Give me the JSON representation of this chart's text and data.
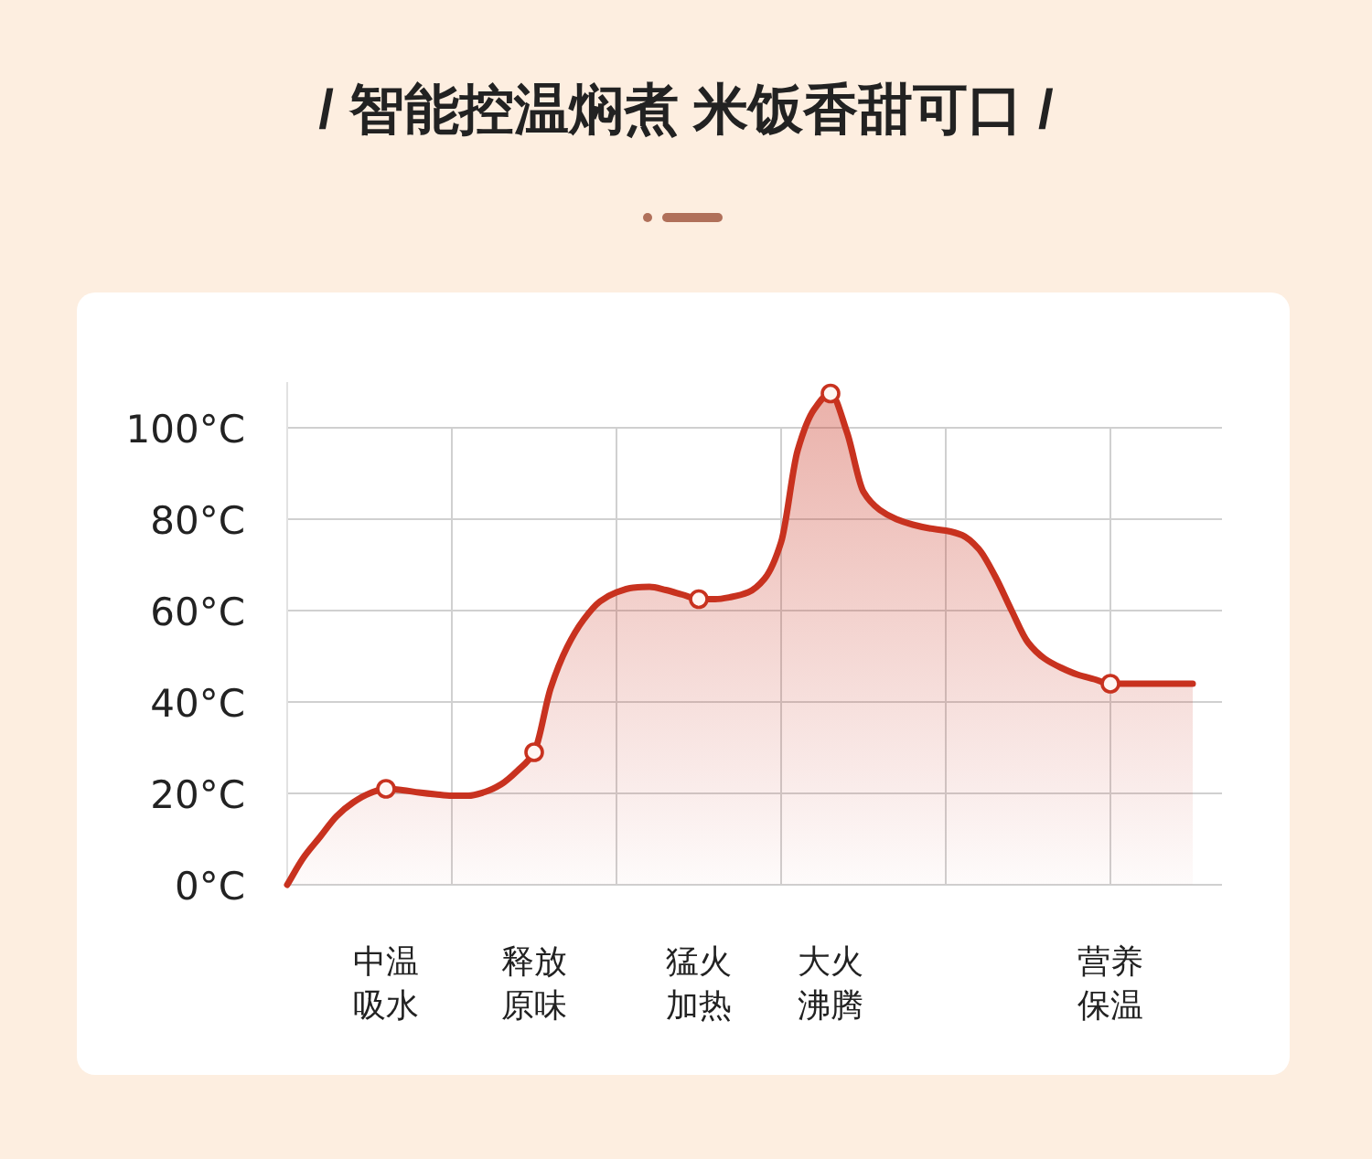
{
  "chart_data": {
    "type": "area",
    "title": "/ 智能控温焖煮 米饭香甜可口 /",
    "categories": [
      null,
      null,
      null,
      null,
      null,
      null,
      "中温吸水",
      null,
      null,
      null,
      null,
      null,
      null,
      null,
      null,
      "释放原味",
      null,
      null,
      null,
      null,
      null,
      null,
      null,
      null,
      null,
      "猛火加热",
      null,
      null,
      null,
      null,
      null,
      null,
      null,
      "大火沸腾",
      null,
      null,
      null,
      null,
      null,
      null,
      null,
      null,
      null,
      null,
      null,
      null,
      null,
      null,
      null,
      null,
      "营养保温",
      null,
      null,
      null,
      null,
      null
    ],
    "ylim": [
      0,
      110
    ],
    "yticks": [
      {
        "value": 0,
        "label": "0°C"
      },
      {
        "value": 20,
        "label": "20°C"
      },
      {
        "value": 40,
        "label": "40°C"
      },
      {
        "value": 60,
        "label": "60°C"
      },
      {
        "value": 80,
        "label": "80°C"
      },
      {
        "value": 100,
        "label": "100°C"
      }
    ],
    "grid": true,
    "series": [
      {
        "type": "area",
        "color": "#c8321f",
        "marker": "none",
        "values": [
          0,
          6,
          10.5,
          15,
          18,
          20,
          21,
          20.7,
          20.2,
          19.8,
          19.5,
          19.5,
          20.3,
          22,
          25,
          29,
          43,
          52,
          58,
          62,
          64,
          65,
          65.2,
          64.5,
          63.5,
          62.5,
          62.5,
          63,
          64,
          67,
          75,
          95,
          104,
          107.5,
          99,
          86,
          82,
          80,
          78.8,
          78,
          77.5,
          76.5,
          73.5,
          67.5,
          60,
          53,
          49.5,
          47.5,
          46,
          45,
          44,
          44,
          44,
          44,
          44,
          44
        ]
      },
      {
        "type": "scatter",
        "color": "#c8321f",
        "marker": "circle",
        "x": [
          "中温吸水",
          "释放原味",
          "猛火加热",
          "大火沸腾",
          "营养保温"
        ],
        "values": [
          21,
          29,
          62.5,
          107.5,
          44
        ]
      }
    ]
  }
}
